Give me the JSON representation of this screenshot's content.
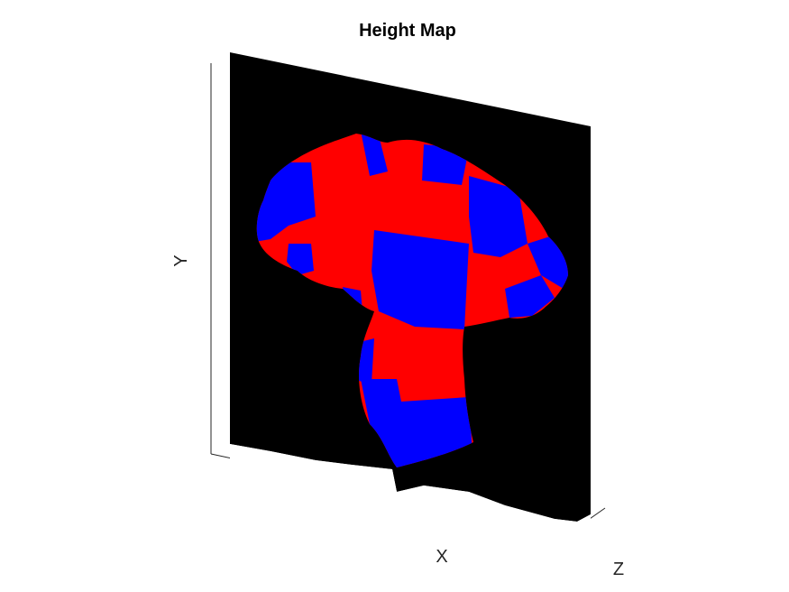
{
  "figure": {
    "background": "#ffffff"
  },
  "chart_data": {
    "type": "surface",
    "title": "Height Map",
    "xlabel": "X",
    "ylabel": "Y",
    "zlabel": "Z",
    "view": "3d",
    "grid": false,
    "ticks": false,
    "background_color": "#000000",
    "colors": {
      "a": "#ff0000",
      "b": "#0000ff"
    },
    "pattern": "checkerboard",
    "object": "mushroom-shaped surface"
  }
}
